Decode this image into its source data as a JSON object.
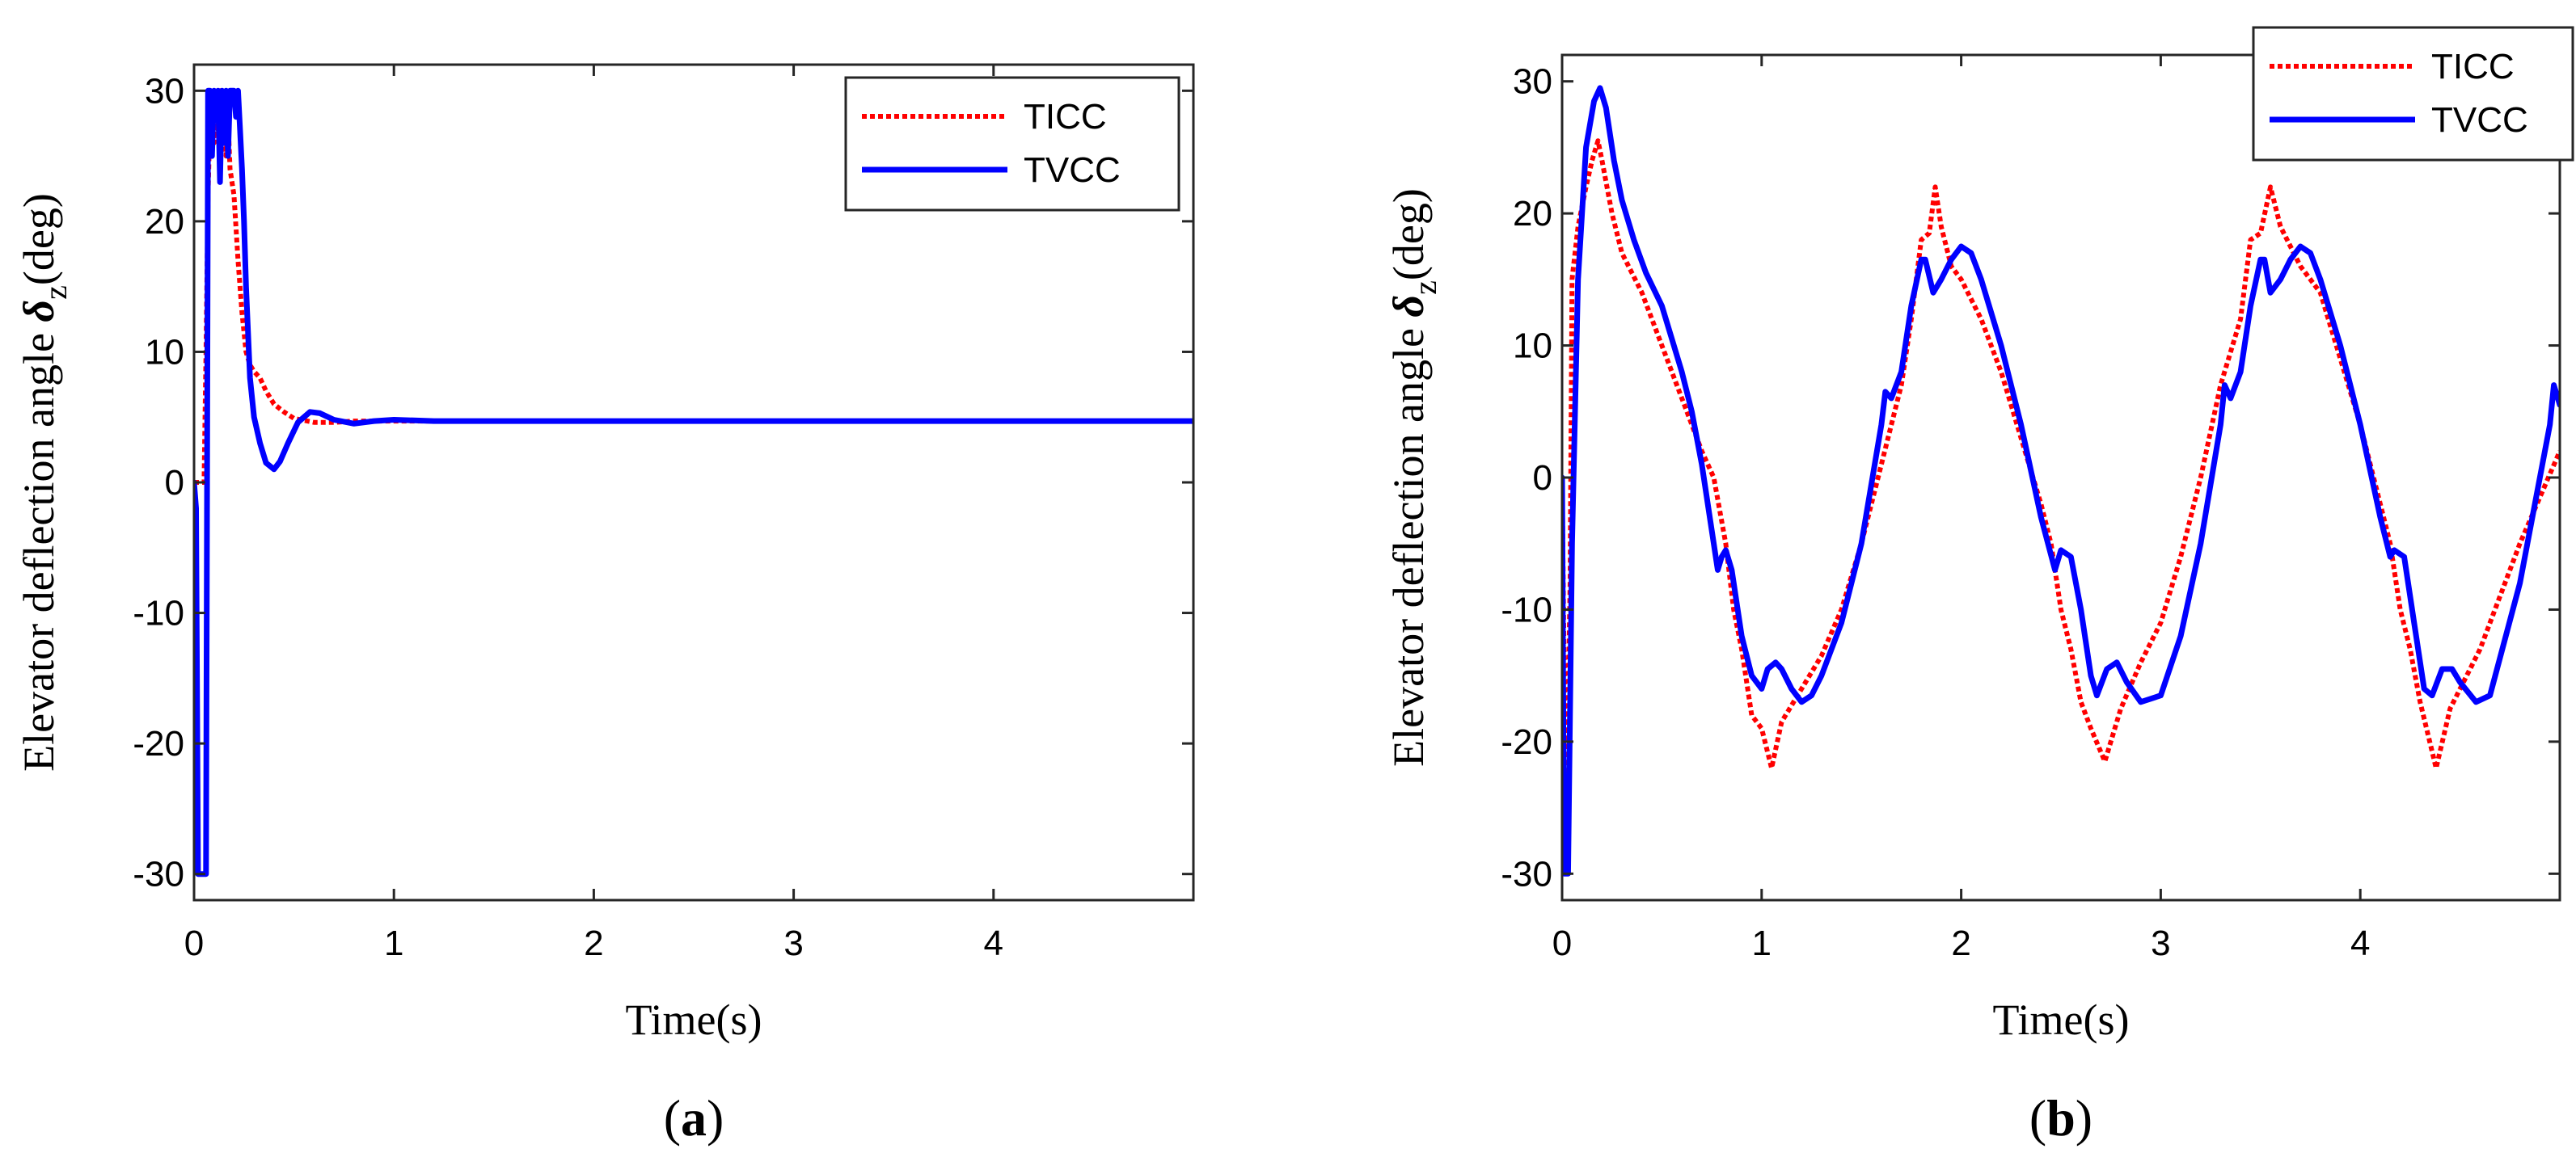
{
  "chart_data": [
    {
      "type": "line",
      "panel_label": {
        "open": "(",
        "letter": "a",
        "close": ")"
      },
      "xlabel": "Time(s)",
      "ylabel": {
        "prefix": "Elevator deflection angle ",
        "symbol": "δ",
        "subscript": "z",
        "unit": "(deg)"
      },
      "xlim": [
        0,
        5
      ],
      "ylim": [
        -32,
        32
      ],
      "xticks": [
        0,
        1,
        2,
        3,
        4
      ],
      "yticks": [
        30,
        20,
        10,
        0,
        -10,
        -20,
        -30
      ],
      "grid": false,
      "legend": {
        "placement": "top-right",
        "entries": [
          "TICC",
          "TVCC"
        ]
      },
      "series": [
        {
          "name": "TICC",
          "color": "#ff0000",
          "style": "dotted",
          "x": [
            0,
            0.02,
            0.05,
            0.06,
            0.07,
            0.08,
            0.09,
            0.1,
            0.11,
            0.12,
            0.13,
            0.14,
            0.15,
            0.16,
            0.17,
            0.18,
            0.2,
            0.22,
            0.24,
            0.26,
            0.28,
            0.3,
            0.33,
            0.36,
            0.4,
            0.45,
            0.5,
            0.6,
            0.7,
            0.8,
            1.0,
            1.5,
            2,
            3,
            4,
            5
          ],
          "y": [
            0,
            0,
            0,
            10,
            22,
            28,
            30,
            26,
            30,
            27,
            30,
            26,
            29,
            25,
            28,
            24,
            22,
            17,
            13,
            10,
            9,
            8.5,
            8,
            7,
            6,
            5.4,
            4.9,
            4.6,
            4.6,
            4.7,
            4.7,
            4.7,
            4.7,
            4.7,
            4.7,
            4.7
          ]
        },
        {
          "name": "TVCC",
          "color": "#0000ff",
          "style": "solid",
          "x": [
            0,
            0.01,
            0.02,
            0.06,
            0.065,
            0.07,
            0.08,
            0.09,
            0.1,
            0.11,
            0.12,
            0.13,
            0.14,
            0.15,
            0.16,
            0.17,
            0.18,
            0.19,
            0.2,
            0.21,
            0.22,
            0.23,
            0.24,
            0.25,
            0.26,
            0.28,
            0.3,
            0.33,
            0.36,
            0.4,
            0.43,
            0.47,
            0.52,
            0.58,
            0.63,
            0.7,
            0.8,
            0.9,
            1.0,
            1.2,
            1.5,
            2,
            3,
            4,
            5
          ],
          "y": [
            0,
            -2,
            -30,
            -30,
            0,
            30,
            30,
            25,
            30,
            28,
            30,
            23,
            30,
            26,
            30,
            25,
            30,
            30,
            30,
            28,
            30,
            27,
            24,
            20,
            15,
            8,
            5,
            3,
            1.5,
            1,
            1.6,
            3,
            4.6,
            5.4,
            5.3,
            4.8,
            4.5,
            4.7,
            4.8,
            4.7,
            4.7,
            4.7,
            4.7,
            4.7,
            4.7
          ]
        }
      ]
    },
    {
      "type": "line",
      "panel_label": {
        "open": "(",
        "letter": "b",
        "close": ")"
      },
      "xlabel": "Time(s)",
      "ylabel": {
        "prefix": "Elevator deflection angle ",
        "symbol": "δ",
        "subscript": "z",
        "unit": "(deg)"
      },
      "xlim": [
        0,
        5
      ],
      "ylim": [
        -32,
        32
      ],
      "xticks": [
        0,
        1,
        2,
        3,
        4
      ],
      "yticks": [
        30,
        20,
        10,
        0,
        -10,
        -20,
        -30
      ],
      "grid": false,
      "legend": {
        "placement": "top-right",
        "entries": [
          "TICC",
          "TVCC"
        ]
      },
      "series": [
        {
          "name": "TICC",
          "color": "#ff0000",
          "style": "dotted",
          "x": [
            0,
            0.02,
            0.04,
            0.05,
            0.08,
            0.12,
            0.15,
            0.18,
            0.2,
            0.25,
            0.3,
            0.4,
            0.5,
            0.6,
            0.7,
            0.76,
            0.82,
            0.86,
            0.9,
            0.95,
            1.0,
            1.05,
            1.1,
            1.2,
            1.3,
            1.4,
            1.5,
            1.6,
            1.7,
            1.75,
            1.8,
            1.84,
            1.87,
            1.9,
            1.95,
            2.0,
            2.1,
            2.2,
            2.3,
            2.4,
            2.45,
            2.5,
            2.55,
            2.6,
            2.65,
            2.72,
            2.8,
            2.9,
            3.0,
            3.1,
            3.2,
            3.3,
            3.4,
            3.45,
            3.5,
            3.55,
            3.6,
            3.7,
            3.8,
            3.9,
            4.0,
            4.1,
            4.15,
            4.2,
            4.25,
            4.3,
            4.38,
            4.45,
            4.6,
            4.8,
            5.0
          ],
          "y": [
            0,
            -28,
            -8,
            15,
            19,
            22,
            24,
            25.5,
            24,
            20,
            17,
            14,
            10,
            6,
            2,
            0,
            -5,
            -10,
            -13,
            -18,
            -19,
            -22,
            -18.5,
            -16,
            -13.5,
            -10,
            -5,
            1,
            7,
            12,
            18,
            18.5,
            22,
            19,
            16,
            15,
            12,
            8,
            3,
            -2,
            -5,
            -10,
            -13,
            -17,
            -19,
            -21.5,
            -17.5,
            -14,
            -11,
            -6,
            0,
            7,
            12,
            18,
            18.5,
            22,
            19,
            16,
            14,
            9,
            4,
            -2,
            -5,
            -10,
            -13,
            -17,
            -22,
            -17.5,
            -13,
            -5,
            2
          ]
        },
        {
          "name": "TVCC",
          "color": "#0000ff",
          "style": "solid",
          "x": [
            0,
            0.01,
            0.03,
            0.05,
            0.08,
            0.12,
            0.16,
            0.19,
            0.22,
            0.26,
            0.3,
            0.36,
            0.42,
            0.5,
            0.6,
            0.65,
            0.7,
            0.75,
            0.78,
            0.8,
            0.82,
            0.85,
            0.9,
            0.95,
            1.0,
            1.03,
            1.07,
            1.1,
            1.15,
            1.2,
            1.25,
            1.3,
            1.4,
            1.5,
            1.6,
            1.62,
            1.65,
            1.7,
            1.75,
            1.8,
            1.82,
            1.86,
            1.9,
            1.95,
            2.0,
            2.05,
            2.1,
            2.2,
            2.3,
            2.4,
            2.47,
            2.5,
            2.55,
            2.6,
            2.65,
            2.68,
            2.73,
            2.78,
            2.83,
            2.9,
            3.0,
            3.1,
            3.2,
            3.3,
            3.32,
            3.35,
            3.4,
            3.45,
            3.5,
            3.52,
            3.55,
            3.6,
            3.65,
            3.7,
            3.75,
            3.8,
            3.9,
            4.0,
            4.1,
            4.15,
            4.17,
            4.22,
            4.27,
            4.32,
            4.36,
            4.41,
            4.46,
            4.5,
            4.58,
            4.65,
            4.8,
            4.95,
            4.97,
            5.0
          ],
          "y": [
            0,
            -30,
            -30,
            -5,
            15,
            25,
            28.5,
            29.5,
            28,
            24,
            21,
            18,
            15.5,
            13,
            8,
            5,
            1,
            -4,
            -7,
            -6,
            -5.5,
            -7,
            -12,
            -15,
            -16,
            -14.5,
            -14,
            -14.5,
            -16,
            -17,
            -16.5,
            -15,
            -11,
            -5,
            4,
            6.5,
            6,
            8,
            13,
            16.5,
            16.5,
            14,
            15,
            16.5,
            17.5,
            17,
            15,
            10,
            4,
            -3,
            -7,
            -5.5,
            -6,
            -10,
            -15,
            -16.5,
            -14.5,
            -14,
            -15.5,
            -17,
            -16.5,
            -12,
            -5,
            4,
            7,
            6,
            8,
            13,
            16.5,
            16.5,
            14,
            15,
            16.5,
            17.5,
            17,
            15,
            10,
            4,
            -3,
            -6,
            -5.5,
            -6,
            -11,
            -16,
            -16.5,
            -14.5,
            -14.5,
            -15.5,
            -17,
            -16.5,
            -8,
            4,
            7,
            5.5
          ]
        }
      ]
    }
  ]
}
